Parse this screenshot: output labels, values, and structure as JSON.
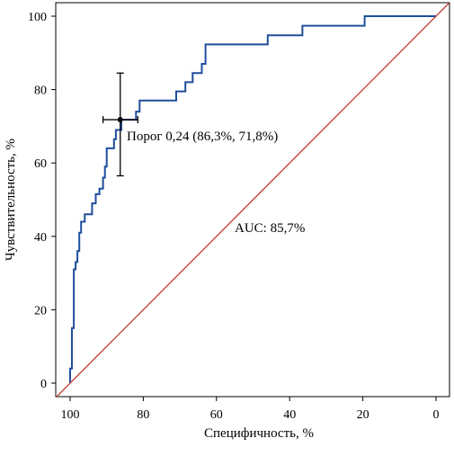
{
  "chart_data": {
    "type": "line",
    "title": "",
    "xlabel": "Специфичность, %",
    "ylabel": "Чувствительность, %",
    "xlim": [
      100,
      0
    ],
    "ylim": [
      0,
      100
    ],
    "x_reversed": true,
    "x_ticks": [
      "100",
      "80",
      "60",
      "40",
      "20",
      "0"
    ],
    "y_ticks": [
      "0",
      "20",
      "40",
      "60",
      "80",
      "100"
    ],
    "grid": false,
    "legend": "none",
    "colors": {
      "roc": "#1f4e9c",
      "reference": "#c0392b",
      "marker": "#000000"
    },
    "series": [
      {
        "line_style": "step",
        "points": [
          [
            100,
            0
          ],
          [
            100,
            4
          ],
          [
            99.5,
            4
          ],
          [
            99.5,
            15
          ],
          [
            99,
            15
          ],
          [
            99,
            31
          ],
          [
            98.5,
            31
          ],
          [
            98.5,
            33
          ],
          [
            98,
            33
          ],
          [
            98,
            36
          ],
          [
            97.5,
            36
          ],
          [
            97.5,
            41
          ],
          [
            97,
            41
          ],
          [
            97,
            44
          ],
          [
            96,
            44
          ],
          [
            96,
            46
          ],
          [
            94,
            46
          ],
          [
            94,
            49
          ],
          [
            93,
            49
          ],
          [
            93,
            51.5
          ],
          [
            92,
            51.5
          ],
          [
            92,
            53
          ],
          [
            91,
            53
          ],
          [
            91,
            56
          ],
          [
            90.5,
            56
          ],
          [
            90.5,
            59
          ],
          [
            90,
            59
          ],
          [
            90,
            64
          ],
          [
            88,
            64
          ],
          [
            88,
            66.5
          ],
          [
            87.5,
            66.5
          ],
          [
            87.5,
            69
          ],
          [
            86,
            69
          ],
          [
            86,
            71.8
          ],
          [
            82,
            71.8
          ],
          [
            82,
            74
          ],
          [
            81,
            74
          ],
          [
            81,
            77
          ],
          [
            71,
            77
          ],
          [
            71,
            79.5
          ],
          [
            68.5,
            79.5
          ],
          [
            68.5,
            82
          ],
          [
            66.5,
            82
          ],
          [
            66.5,
            84.5
          ],
          [
            64,
            84.5
          ],
          [
            64,
            87
          ],
          [
            63,
            87
          ],
          [
            63,
            92.3
          ],
          [
            46,
            92.3
          ],
          [
            46,
            94.8
          ],
          [
            36.5,
            94.8
          ],
          [
            36.5,
            97.4
          ],
          [
            19.5,
            97.4
          ],
          [
            19.5,
            100
          ],
          [
            0,
            100
          ]
        ]
      },
      {
        "line_style": "straight",
        "points": [
          [
            104,
            -4
          ],
          [
            -4,
            104
          ]
        ]
      }
    ],
    "threshold": {
      "specificity": 86.3,
      "sensitivity": 71.8,
      "spec_range": [
        91,
        81.5
      ],
      "sens_range": [
        56.5,
        84.5
      ],
      "label": "Порог 0,24 (86,3%, 71,8%)"
    },
    "auc_label": "AUC: 85,7%"
  }
}
